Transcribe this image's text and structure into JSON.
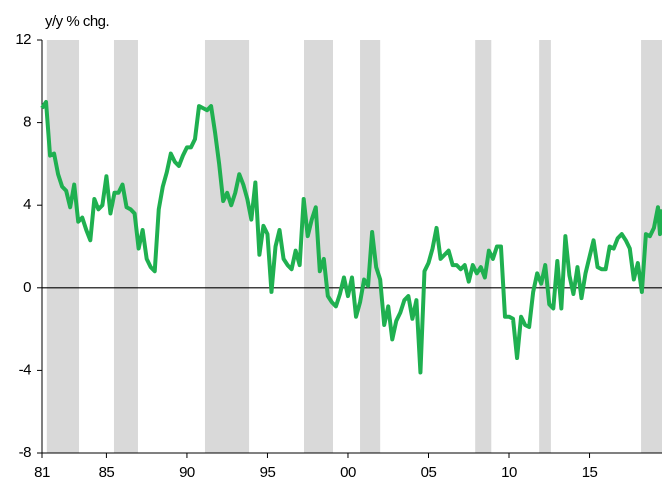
{
  "chart_data": {
    "type": "line",
    "ylabel": "y/y % chg.",
    "color": "#1fb050",
    "zero_line": true,
    "shade_color": "#d9d9d9",
    "shaded_periods": [
      [
        1981.3,
        1983.3
      ],
      [
        1985.47,
        1986.96
      ],
      [
        1991.12,
        1993.86
      ],
      [
        1997.27,
        1999.07
      ],
      [
        2000.75,
        2002.0
      ],
      [
        2007.9,
        2008.9
      ],
      [
        2011.87,
        2012.6
      ],
      [
        2018.2,
        2019.5
      ]
    ],
    "xlim": [
      1981,
      2019.5
    ],
    "xticks": [
      {
        "value": 1981,
        "label": "81"
      },
      {
        "value": 1985,
        "label": "85"
      },
      {
        "value": 1990,
        "label": "90"
      },
      {
        "value": 1995,
        "label": "95"
      },
      {
        "value": 2000,
        "label": "00"
      },
      {
        "value": 2005,
        "label": "05"
      },
      {
        "value": 2010,
        "label": "10"
      },
      {
        "value": 2015,
        "label": "15"
      }
    ],
    "ylim": [
      -8,
      12
    ],
    "yticks": [
      -8,
      -4,
      0,
      4,
      8,
      12
    ],
    "x": [
      1981,
      1981.25,
      1981.5,
      1981.75,
      1982,
      1982.25,
      1982.5,
      1982.75,
      1983,
      1983.25,
      1983.5,
      1983.75,
      1984,
      1984.25,
      1984.5,
      1984.75,
      1985,
      1985.25,
      1985.5,
      1985.75,
      1986,
      1986.25,
      1986.5,
      1986.75,
      1987,
      1987.25,
      1987.5,
      1987.75,
      1988,
      1988.25,
      1988.5,
      1988.75,
      1989,
      1989.25,
      1989.5,
      1989.75,
      1990,
      1990.25,
      1990.5,
      1990.75,
      1991,
      1991.25,
      1991.5,
      1991.75,
      1992,
      1992.25,
      1992.5,
      1992.75,
      1993,
      1993.25,
      1993.5,
      1993.75,
      1994,
      1994.25,
      1994.5,
      1994.75,
      1995,
      1995.25,
      1995.5,
      1995.75,
      1996,
      1996.25,
      1996.5,
      1996.75,
      1997,
      1997.25,
      1997.5,
      1997.75,
      1998,
      1998.25,
      1998.5,
      1998.75,
      1999,
      1999.25,
      1999.5,
      1999.75,
      2000,
      2000.25,
      2000.5,
      2000.75,
      2001,
      2001.25,
      2001.5,
      2001.75,
      2002,
      2002.25,
      2002.5,
      2002.75,
      2003,
      2003.25,
      2003.5,
      2003.75,
      2004,
      2004.25,
      2004.5,
      2004.75,
      2005,
      2005.25,
      2005.5,
      2005.75,
      2006,
      2006.25,
      2006.5,
      2006.75,
      2007,
      2007.25,
      2007.5,
      2007.75,
      2008,
      2008.25,
      2008.5,
      2008.75,
      2009,
      2009.25,
      2009.5,
      2009.75,
      2010,
      2010.25,
      2010.5,
      2010.75,
      2011,
      2011.25,
      2011.5,
      2011.75,
      2012,
      2012.25,
      2012.5,
      2012.75,
      2013,
      2013.25,
      2013.5,
      2013.75,
      2014,
      2014.25,
      2014.5,
      2014.75,
      2015,
      2015.25,
      2015.5,
      2015.75,
      2016,
      2016.25,
      2016.5,
      2016.75,
      2017,
      2017.25,
      2017.5,
      2017.75,
      2018,
      2018.25,
      2018.5,
      2018.75,
      2019,
      2019.25,
      2019.375,
      2019.5
    ],
    "values": [
      8.7,
      9.0,
      6.4,
      6.5,
      5.5,
      4.9,
      4.7,
      3.9,
      5.0,
      3.2,
      3.4,
      2.8,
      2.3,
      4.3,
      3.8,
      4.0,
      5.4,
      3.6,
      4.6,
      4.6,
      5.0,
      3.9,
      3.8,
      3.6,
      1.9,
      2.8,
      1.4,
      1.0,
      0.8,
      3.8,
      4.9,
      5.6,
      6.5,
      6.1,
      5.9,
      6.4,
      6.8,
      6.8,
      7.2,
      8.8,
      8.7,
      8.6,
      8.8,
      7.5,
      6.0,
      4.2,
      4.6,
      4.0,
      4.6,
      5.5,
      5.0,
      4.3,
      3.3,
      5.1,
      1.6,
      3.0,
      2.6,
      -0.2,
      2.0,
      2.8,
      1.4,
      1.1,
      0.9,
      1.8,
      1.1,
      4.3,
      2.5,
      3.3,
      3.9,
      0.8,
      1.4,
      -0.4,
      -0.7,
      -0.9,
      -0.3,
      0.5,
      -0.4,
      0.5,
      -1.4,
      -0.7,
      0.4,
      0.1,
      2.7,
      1.0,
      0.4,
      -1.8,
      -0.9,
      -2.5,
      -1.6,
      -1.2,
      -0.6,
      -0.4,
      -1.5,
      -0.6,
      -4.1,
      0.8,
      1.2,
      1.9,
      2.9,
      1.4,
      1.6,
      1.8,
      1.1,
      1.1,
      0.9,
      1.1,
      0.3,
      1.1,
      0.7,
      1.0,
      0.5,
      1.8,
      1.4,
      2.0,
      2.0,
      -1.4,
      -1.4,
      -1.5,
      -3.4,
      -1.4,
      -1.8,
      -1.9,
      -0.2,
      0.7,
      0.2,
      1.1,
      -0.8,
      -1.0,
      1.3,
      -1.0,
      2.5,
      0.6,
      -0.3,
      1.0,
      -0.5,
      0.7,
      1.5,
      2.3,
      1.0,
      0.9,
      0.9,
      2.0,
      1.9,
      2.4,
      2.6,
      2.3,
      1.9,
      0.4,
      1.2,
      -0.2,
      2.6,
      2.5,
      2.9,
      3.9,
      2.6,
      3.8
    ]
  }
}
